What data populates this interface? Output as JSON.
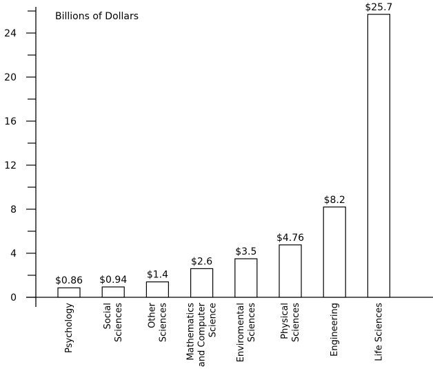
{
  "chart_data": {
    "type": "bar",
    "ylabel": "Billions of Dollars",
    "ylim": [
      0,
      26
    ],
    "yticks": [
      0,
      4,
      8,
      12,
      16,
      20,
      24
    ],
    "grid": false,
    "categories": [
      [
        "Psychology"
      ],
      [
        "Social",
        "Sciences"
      ],
      [
        "Other",
        "Sciences"
      ],
      [
        "Mathematics",
        "and Computer",
        "Science"
      ],
      [
        "Enviromental",
        "Sciences"
      ],
      [
        "Physical",
        "Sciences"
      ],
      [
        "Engineering"
      ],
      [
        "Life Sciences"
      ]
    ],
    "values": [
      0.86,
      0.94,
      1.4,
      2.6,
      3.5,
      4.76,
      8.2,
      25.7
    ],
    "data_labels": [
      "$0.86",
      "$0.94",
      "$1.4",
      "$2.6",
      "$3.5",
      "$4.76",
      "$8.2",
      "$25.7"
    ]
  }
}
